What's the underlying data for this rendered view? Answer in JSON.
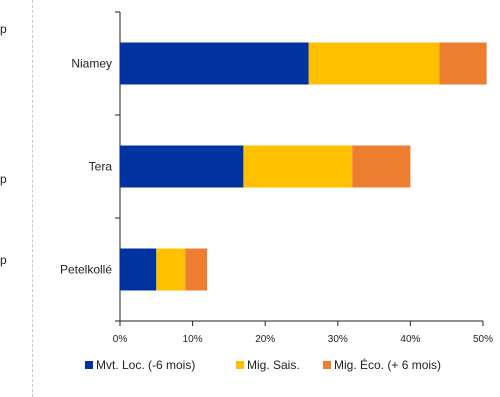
{
  "left_fragments": [
    "p",
    "p",
    "p"
  ],
  "chart_data": {
    "type": "bar",
    "orientation": "horizontal",
    "stacked": true,
    "categories": [
      "Niamey",
      "Tera",
      "Petelkollé"
    ],
    "series": [
      {
        "name": "Mvt. Loc. (-6 mois)",
        "values": [
          26,
          17,
          5
        ],
        "color": "#0033a0"
      },
      {
        "name": "Mig. Sais.",
        "values": [
          18,
          15,
          4
        ],
        "color": "#ffc000"
      },
      {
        "name": "Mig. Éco. (+ 6 mois)",
        "values": [
          6.5,
          8,
          3
        ],
        "color": "#ed7d31"
      }
    ],
    "xlim": [
      0,
      50
    ],
    "xticks": [
      0,
      10,
      20,
      30,
      40,
      50
    ],
    "xtick_labels": [
      "0%",
      "10%",
      "20%",
      "30%",
      "40%",
      "50%"
    ],
    "legend": "bottom",
    "grid": false
  }
}
